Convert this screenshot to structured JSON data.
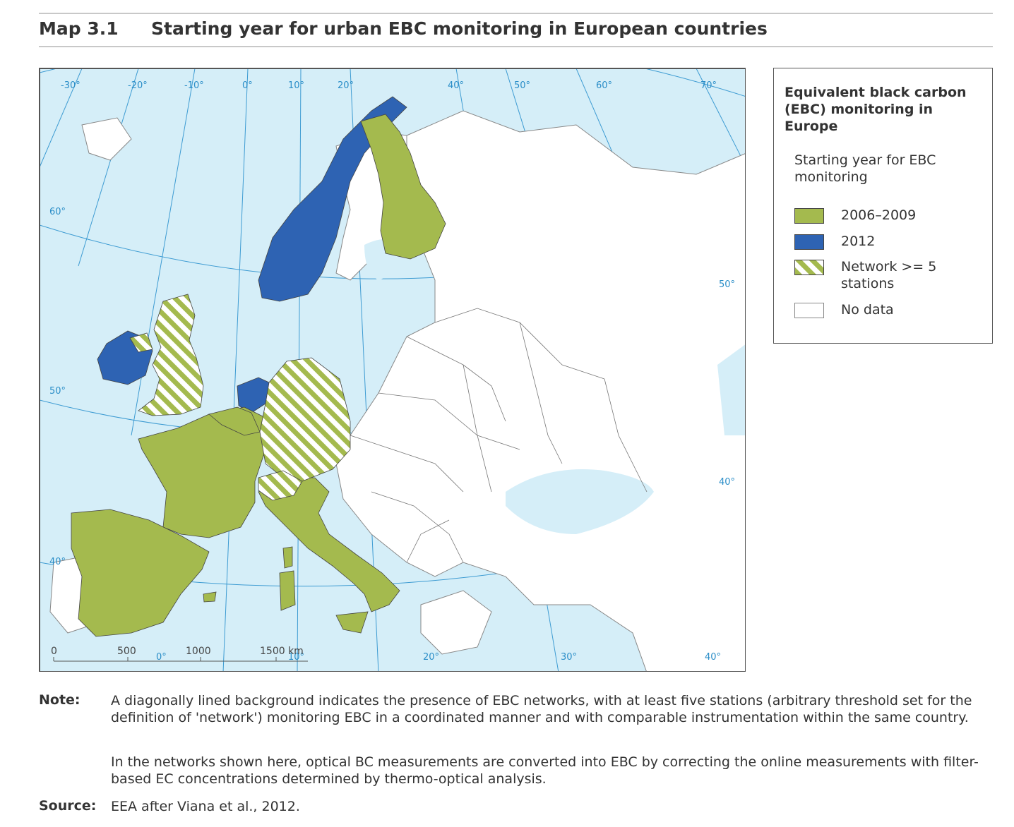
{
  "header": {
    "map_number": "Map 3.1",
    "title": "Starting year for urban EBC monitoring in European countries"
  },
  "legend": {
    "title": "Equivalent black carbon (EBC) monitoring in Europe",
    "subtitle": "Starting year for EBC monitoring",
    "items": [
      {
        "label": "2006–2009",
        "color": "#a4ba4e",
        "pattern": "solid"
      },
      {
        "label": "2012",
        "color": "#2e63b3",
        "pattern": "solid"
      },
      {
        "label": "Network >= 5 stations",
        "color": "#a4ba4e",
        "pattern": "hatched"
      },
      {
        "label": "No data",
        "color": "#ffffff",
        "pattern": "solid"
      }
    ]
  },
  "map": {
    "colors": {
      "sea": "#d5eef8",
      "land": "#ffffff",
      "graticule": "#3d9bd2",
      "border": "#666666"
    },
    "longitude_labels_top": [
      "-30°",
      "-20°",
      "-10°",
      "0°",
      "10°",
      "20°",
      "40°",
      "50°",
      "60°",
      "70°"
    ],
    "longitude_labels_bottom": [
      "0°",
      "10°",
      "20°",
      "30°",
      "40°"
    ],
    "latitude_labels_left": [
      "60°",
      "50°",
      "40°"
    ],
    "latitude_labels_right": [
      "50°",
      "40°"
    ],
    "scale_bar": {
      "ticks": [
        "0",
        "500",
        "1000",
        "1500 km"
      ]
    },
    "countries": [
      {
        "name": "Norway",
        "category": "2012"
      },
      {
        "name": "Ireland",
        "category": "2012"
      },
      {
        "name": "Netherlands",
        "category": "2012"
      },
      {
        "name": "Finland",
        "category": "2006–2009"
      },
      {
        "name": "France",
        "category": "2006–2009"
      },
      {
        "name": "Spain",
        "category": "2006–2009"
      },
      {
        "name": "Italy",
        "category": "2006–2009"
      },
      {
        "name": "Belgium",
        "category": "2006–2009"
      },
      {
        "name": "United Kingdom",
        "category": "Network >= 5 stations"
      },
      {
        "name": "Germany",
        "category": "Network >= 5 stations"
      },
      {
        "name": "Switzerland",
        "category": "Network >= 5 stations"
      }
    ]
  },
  "notes": {
    "note_label": "Note:",
    "note_paragraphs": [
      "A diagonally lined background indicates the presence of EBC networks, with at least five stations (arbitrary threshold set for the definition of 'network') monitoring EBC in a coordinated manner and with comparable instrumentation within the same country.",
      "In the networks shown here, optical BC measurements are converted into EBC by correcting the online measurements with filter-based EC concentrations determined by thermo-optical analysis."
    ],
    "source_label": "Source:",
    "source_text": "EEA after Viana et al., 2012."
  }
}
